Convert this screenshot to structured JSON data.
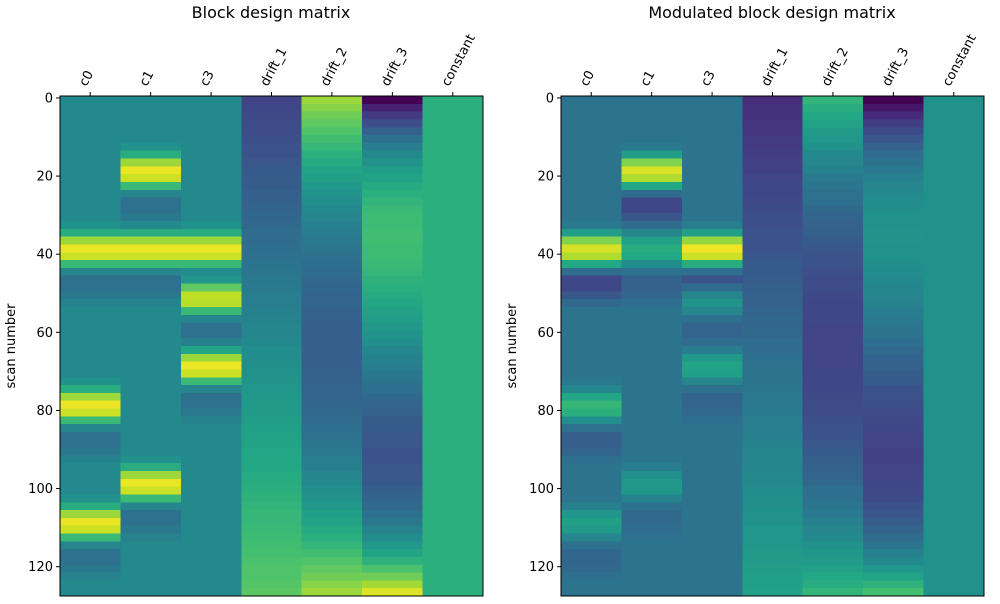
{
  "chart_data": [
    {
      "type": "heatmap",
      "title": "Block design matrix",
      "ylabel": "scan number",
      "xlabel": "",
      "colormap": "viridis",
      "value_scale": "normalized color value (0-1)",
      "columns": [
        "c0",
        "c1",
        "c3",
        "drift_1",
        "drift_2",
        "drift_3",
        "constant"
      ],
      "yticks": [
        0,
        20,
        40,
        60,
        80,
        100,
        120
      ],
      "ylim": [
        127.5,
        -0.5
      ],
      "row_scans": "0-127, sampled every 2 scans",
      "values": {
        "c0": [
          0.47,
          0.47,
          0.47,
          0.47,
          0.47,
          0.47,
          0.47,
          0.47,
          0.47,
          0.47,
          0.47,
          0.47,
          0.47,
          0.47,
          0.47,
          0.47,
          0.5,
          0.62,
          0.85,
          0.97,
          0.92,
          0.67,
          0.45,
          0.37,
          0.37,
          0.4,
          0.44,
          0.47,
          0.47,
          0.47,
          0.47,
          0.47,
          0.47,
          0.47,
          0.47,
          0.47,
          0.5,
          0.62,
          0.85,
          0.97,
          0.92,
          0.67,
          0.45,
          0.37,
          0.37,
          0.4,
          0.44,
          0.47,
          0.47,
          0.47,
          0.47,
          0.5,
          0.62,
          0.85,
          0.97,
          0.92,
          0.67,
          0.45,
          0.37,
          0.37,
          0.4,
          0.44,
          0.47,
          0.47
        ],
        "c1": [
          0.47,
          0.47,
          0.47,
          0.47,
          0.47,
          0.47,
          0.5,
          0.62,
          0.85,
          0.97,
          0.92,
          0.67,
          0.45,
          0.37,
          0.37,
          0.4,
          0.47,
          0.62,
          0.85,
          0.97,
          0.92,
          0.67,
          0.45,
          0.37,
          0.37,
          0.4,
          0.44,
          0.47,
          0.47,
          0.47,
          0.47,
          0.47,
          0.47,
          0.47,
          0.47,
          0.47,
          0.47,
          0.47,
          0.47,
          0.47,
          0.47,
          0.47,
          0.47,
          0.47,
          0.47,
          0.47,
          0.5,
          0.62,
          0.85,
          0.97,
          0.92,
          0.67,
          0.45,
          0.37,
          0.37,
          0.4,
          0.44,
          0.47,
          0.47,
          0.47,
          0.47,
          0.47,
          0.47,
          0.47
        ],
        "c3": [
          0.47,
          0.47,
          0.47,
          0.47,
          0.47,
          0.47,
          0.47,
          0.47,
          0.47,
          0.47,
          0.47,
          0.47,
          0.47,
          0.47,
          0.47,
          0.47,
          0.5,
          0.62,
          0.85,
          0.97,
          0.92,
          0.67,
          0.48,
          0.52,
          0.75,
          0.9,
          0.89,
          0.67,
          0.45,
          0.37,
          0.37,
          0.43,
          0.59,
          0.85,
          0.97,
          0.92,
          0.67,
          0.45,
          0.37,
          0.37,
          0.4,
          0.44,
          0.47,
          0.47,
          0.47,
          0.47,
          0.47,
          0.47,
          0.47,
          0.47,
          0.47,
          0.47,
          0.47,
          0.47,
          0.47,
          0.47,
          0.47,
          0.47,
          0.47,
          0.47,
          0.47,
          0.47,
          0.47,
          0.47
        ],
        "drift_1": [
          0.2,
          0.21,
          0.22,
          0.23,
          0.23,
          0.24,
          0.25,
          0.26,
          0.27,
          0.28,
          0.29,
          0.29,
          0.3,
          0.31,
          0.32,
          0.33,
          0.34,
          0.35,
          0.35,
          0.36,
          0.37,
          0.38,
          0.39,
          0.4,
          0.41,
          0.42,
          0.42,
          0.43,
          0.44,
          0.45,
          0.46,
          0.47,
          0.48,
          0.48,
          0.49,
          0.5,
          0.51,
          0.52,
          0.53,
          0.54,
          0.54,
          0.55,
          0.56,
          0.57,
          0.58,
          0.59,
          0.6,
          0.6,
          0.61,
          0.62,
          0.63,
          0.64,
          0.65,
          0.66,
          0.66,
          0.67,
          0.68,
          0.69,
          0.7,
          0.71,
          0.72,
          0.72,
          0.73,
          0.74
        ],
        "drift_2": [
          0.85,
          0.82,
          0.78,
          0.75,
          0.72,
          0.69,
          0.66,
          0.63,
          0.61,
          0.58,
          0.56,
          0.53,
          0.51,
          0.49,
          0.47,
          0.45,
          0.43,
          0.42,
          0.4,
          0.39,
          0.37,
          0.36,
          0.35,
          0.34,
          0.33,
          0.32,
          0.32,
          0.31,
          0.31,
          0.3,
          0.3,
          0.3,
          0.3,
          0.3,
          0.3,
          0.31,
          0.31,
          0.32,
          0.32,
          0.33,
          0.34,
          0.35,
          0.36,
          0.37,
          0.39,
          0.4,
          0.42,
          0.43,
          0.45,
          0.47,
          0.49,
          0.51,
          0.53,
          0.56,
          0.58,
          0.61,
          0.63,
          0.66,
          0.69,
          0.72,
          0.75,
          0.78,
          0.82,
          0.85
        ],
        "drift_3": [
          0.0,
          0.09,
          0.17,
          0.24,
          0.31,
          0.37,
          0.42,
          0.47,
          0.51,
          0.55,
          0.58,
          0.61,
          0.63,
          0.65,
          0.67,
          0.68,
          0.68,
          0.69,
          0.69,
          0.68,
          0.68,
          0.67,
          0.66,
          0.64,
          0.63,
          0.61,
          0.59,
          0.57,
          0.55,
          0.53,
          0.51,
          0.49,
          0.46,
          0.44,
          0.42,
          0.4,
          0.38,
          0.36,
          0.34,
          0.32,
          0.31,
          0.29,
          0.28,
          0.27,
          0.27,
          0.26,
          0.26,
          0.27,
          0.27,
          0.28,
          0.3,
          0.32,
          0.34,
          0.37,
          0.4,
          0.44,
          0.48,
          0.53,
          0.58,
          0.64,
          0.71,
          0.78,
          0.86,
          0.95
        ],
        "constant": [
          0.63,
          0.63,
          0.63,
          0.63,
          0.63,
          0.63,
          0.63,
          0.63,
          0.63,
          0.63,
          0.63,
          0.63,
          0.63,
          0.63,
          0.63,
          0.63,
          0.63,
          0.63,
          0.63,
          0.63,
          0.63,
          0.63,
          0.63,
          0.63,
          0.63,
          0.63,
          0.63,
          0.63,
          0.63,
          0.63,
          0.63,
          0.63,
          0.63,
          0.63,
          0.63,
          0.63,
          0.63,
          0.63,
          0.63,
          0.63,
          0.63,
          0.63,
          0.63,
          0.63,
          0.63,
          0.63,
          0.63,
          0.63,
          0.63,
          0.63,
          0.63,
          0.63,
          0.63,
          0.63,
          0.63,
          0.63,
          0.63,
          0.63,
          0.63,
          0.63,
          0.63,
          0.63,
          0.63,
          0.63
        ]
      }
    },
    {
      "type": "heatmap",
      "title": "Modulated block design matrix",
      "ylabel": "scan number",
      "xlabel": "",
      "colormap": "viridis",
      "value_scale": "normalized color value (0-1)",
      "columns": [
        "c0",
        "c1",
        "c3",
        "drift_1",
        "drift_2",
        "drift_3",
        "constant"
      ],
      "yticks": [
        0,
        20,
        40,
        60,
        80,
        100,
        120
      ],
      "ylim": [
        127.5,
        -0.5
      ],
      "row_scans": "0-127, sampled every 2 scans",
      "values": {
        "c0": [
          0.38,
          0.38,
          0.38,
          0.38,
          0.38,
          0.38,
          0.38,
          0.38,
          0.38,
          0.38,
          0.38,
          0.38,
          0.38,
          0.38,
          0.38,
          0.38,
          0.41,
          0.55,
          0.81,
          0.94,
          0.88,
          0.6,
          0.35,
          0.21,
          0.21,
          0.27,
          0.34,
          0.38,
          0.38,
          0.38,
          0.38,
          0.38,
          0.38,
          0.38,
          0.38,
          0.38,
          0.4,
          0.46,
          0.59,
          0.66,
          0.63,
          0.49,
          0.37,
          0.3,
          0.3,
          0.32,
          0.36,
          0.38,
          0.38,
          0.38,
          0.38,
          0.39,
          0.43,
          0.52,
          0.56,
          0.54,
          0.45,
          0.37,
          0.33,
          0.33,
          0.34,
          0.37,
          0.38,
          0.38
        ],
        "c1": [
          0.38,
          0.38,
          0.38,
          0.38,
          0.38,
          0.38,
          0.41,
          0.55,
          0.81,
          0.94,
          0.88,
          0.6,
          0.35,
          0.21,
          0.21,
          0.27,
          0.35,
          0.45,
          0.56,
          0.62,
          0.6,
          0.48,
          0.37,
          0.31,
          0.31,
          0.33,
          0.36,
          0.38,
          0.38,
          0.38,
          0.38,
          0.38,
          0.38,
          0.38,
          0.38,
          0.38,
          0.38,
          0.38,
          0.38,
          0.38,
          0.38,
          0.38,
          0.38,
          0.38,
          0.38,
          0.38,
          0.39,
          0.42,
          0.49,
          0.53,
          0.52,
          0.44,
          0.37,
          0.34,
          0.34,
          0.35,
          0.37,
          0.38,
          0.38,
          0.38,
          0.38,
          0.38,
          0.38,
          0.38
        ],
        "c3": [
          0.38,
          0.38,
          0.38,
          0.38,
          0.38,
          0.38,
          0.38,
          0.38,
          0.38,
          0.38,
          0.38,
          0.38,
          0.38,
          0.38,
          0.38,
          0.38,
          0.42,
          0.56,
          0.84,
          0.98,
          0.92,
          0.62,
          0.36,
          0.26,
          0.35,
          0.46,
          0.51,
          0.46,
          0.37,
          0.32,
          0.32,
          0.35,
          0.42,
          0.53,
          0.58,
          0.56,
          0.46,
          0.37,
          0.32,
          0.32,
          0.34,
          0.36,
          0.38,
          0.38,
          0.38,
          0.38,
          0.38,
          0.38,
          0.38,
          0.38,
          0.38,
          0.38,
          0.38,
          0.38,
          0.38,
          0.38,
          0.38,
          0.38,
          0.38,
          0.38,
          0.38,
          0.38,
          0.38,
          0.38
        ],
        "drift_1": [
          0.13,
          0.14,
          0.14,
          0.15,
          0.16,
          0.17,
          0.17,
          0.18,
          0.19,
          0.19,
          0.2,
          0.21,
          0.21,
          0.22,
          0.23,
          0.24,
          0.24,
          0.25,
          0.26,
          0.26,
          0.27,
          0.28,
          0.28,
          0.29,
          0.3,
          0.31,
          0.31,
          0.32,
          0.33,
          0.33,
          0.34,
          0.35,
          0.35,
          0.36,
          0.37,
          0.38,
          0.38,
          0.39,
          0.4,
          0.4,
          0.41,
          0.42,
          0.42,
          0.43,
          0.44,
          0.45,
          0.45,
          0.46,
          0.47,
          0.47,
          0.48,
          0.49,
          0.49,
          0.5,
          0.51,
          0.52,
          0.52,
          0.53,
          0.54,
          0.54,
          0.55,
          0.56,
          0.56,
          0.57
        ],
        "drift_2": [
          0.65,
          0.62,
          0.6,
          0.57,
          0.54,
          0.52,
          0.5,
          0.47,
          0.45,
          0.43,
          0.41,
          0.39,
          0.37,
          0.36,
          0.34,
          0.32,
          0.31,
          0.3,
          0.28,
          0.27,
          0.26,
          0.25,
          0.24,
          0.23,
          0.23,
          0.22,
          0.21,
          0.21,
          0.21,
          0.2,
          0.2,
          0.2,
          0.2,
          0.2,
          0.2,
          0.21,
          0.21,
          0.21,
          0.22,
          0.23,
          0.23,
          0.24,
          0.25,
          0.26,
          0.27,
          0.28,
          0.3,
          0.31,
          0.32,
          0.34,
          0.36,
          0.37,
          0.39,
          0.41,
          0.43,
          0.45,
          0.47,
          0.5,
          0.52,
          0.54,
          0.57,
          0.6,
          0.62,
          0.65
        ],
        "drift_3": [
          0.0,
          0.06,
          0.12,
          0.18,
          0.23,
          0.27,
          0.31,
          0.35,
          0.38,
          0.41,
          0.43,
          0.45,
          0.47,
          0.48,
          0.49,
          0.5,
          0.5,
          0.51,
          0.51,
          0.5,
          0.5,
          0.49,
          0.48,
          0.47,
          0.46,
          0.45,
          0.44,
          0.42,
          0.41,
          0.39,
          0.38,
          0.36,
          0.34,
          0.32,
          0.31,
          0.29,
          0.28,
          0.26,
          0.25,
          0.24,
          0.23,
          0.22,
          0.21,
          0.2,
          0.2,
          0.19,
          0.19,
          0.2,
          0.2,
          0.21,
          0.22,
          0.23,
          0.25,
          0.27,
          0.29,
          0.32,
          0.35,
          0.39,
          0.43,
          0.47,
          0.52,
          0.58,
          0.64,
          0.7
        ],
        "constant": [
          0.5,
          0.5,
          0.5,
          0.5,
          0.5,
          0.5,
          0.5,
          0.5,
          0.5,
          0.5,
          0.5,
          0.5,
          0.5,
          0.5,
          0.5,
          0.5,
          0.5,
          0.5,
          0.5,
          0.5,
          0.5,
          0.5,
          0.5,
          0.5,
          0.5,
          0.5,
          0.5,
          0.5,
          0.5,
          0.5,
          0.5,
          0.5,
          0.5,
          0.5,
          0.5,
          0.5,
          0.5,
          0.5,
          0.5,
          0.5,
          0.5,
          0.5,
          0.5,
          0.5,
          0.5,
          0.5,
          0.5,
          0.5,
          0.5,
          0.5,
          0.5,
          0.5,
          0.5,
          0.5,
          0.5,
          0.5,
          0.5,
          0.5,
          0.5,
          0.5,
          0.5,
          0.5,
          0.5,
          0.5
        ]
      }
    }
  ]
}
